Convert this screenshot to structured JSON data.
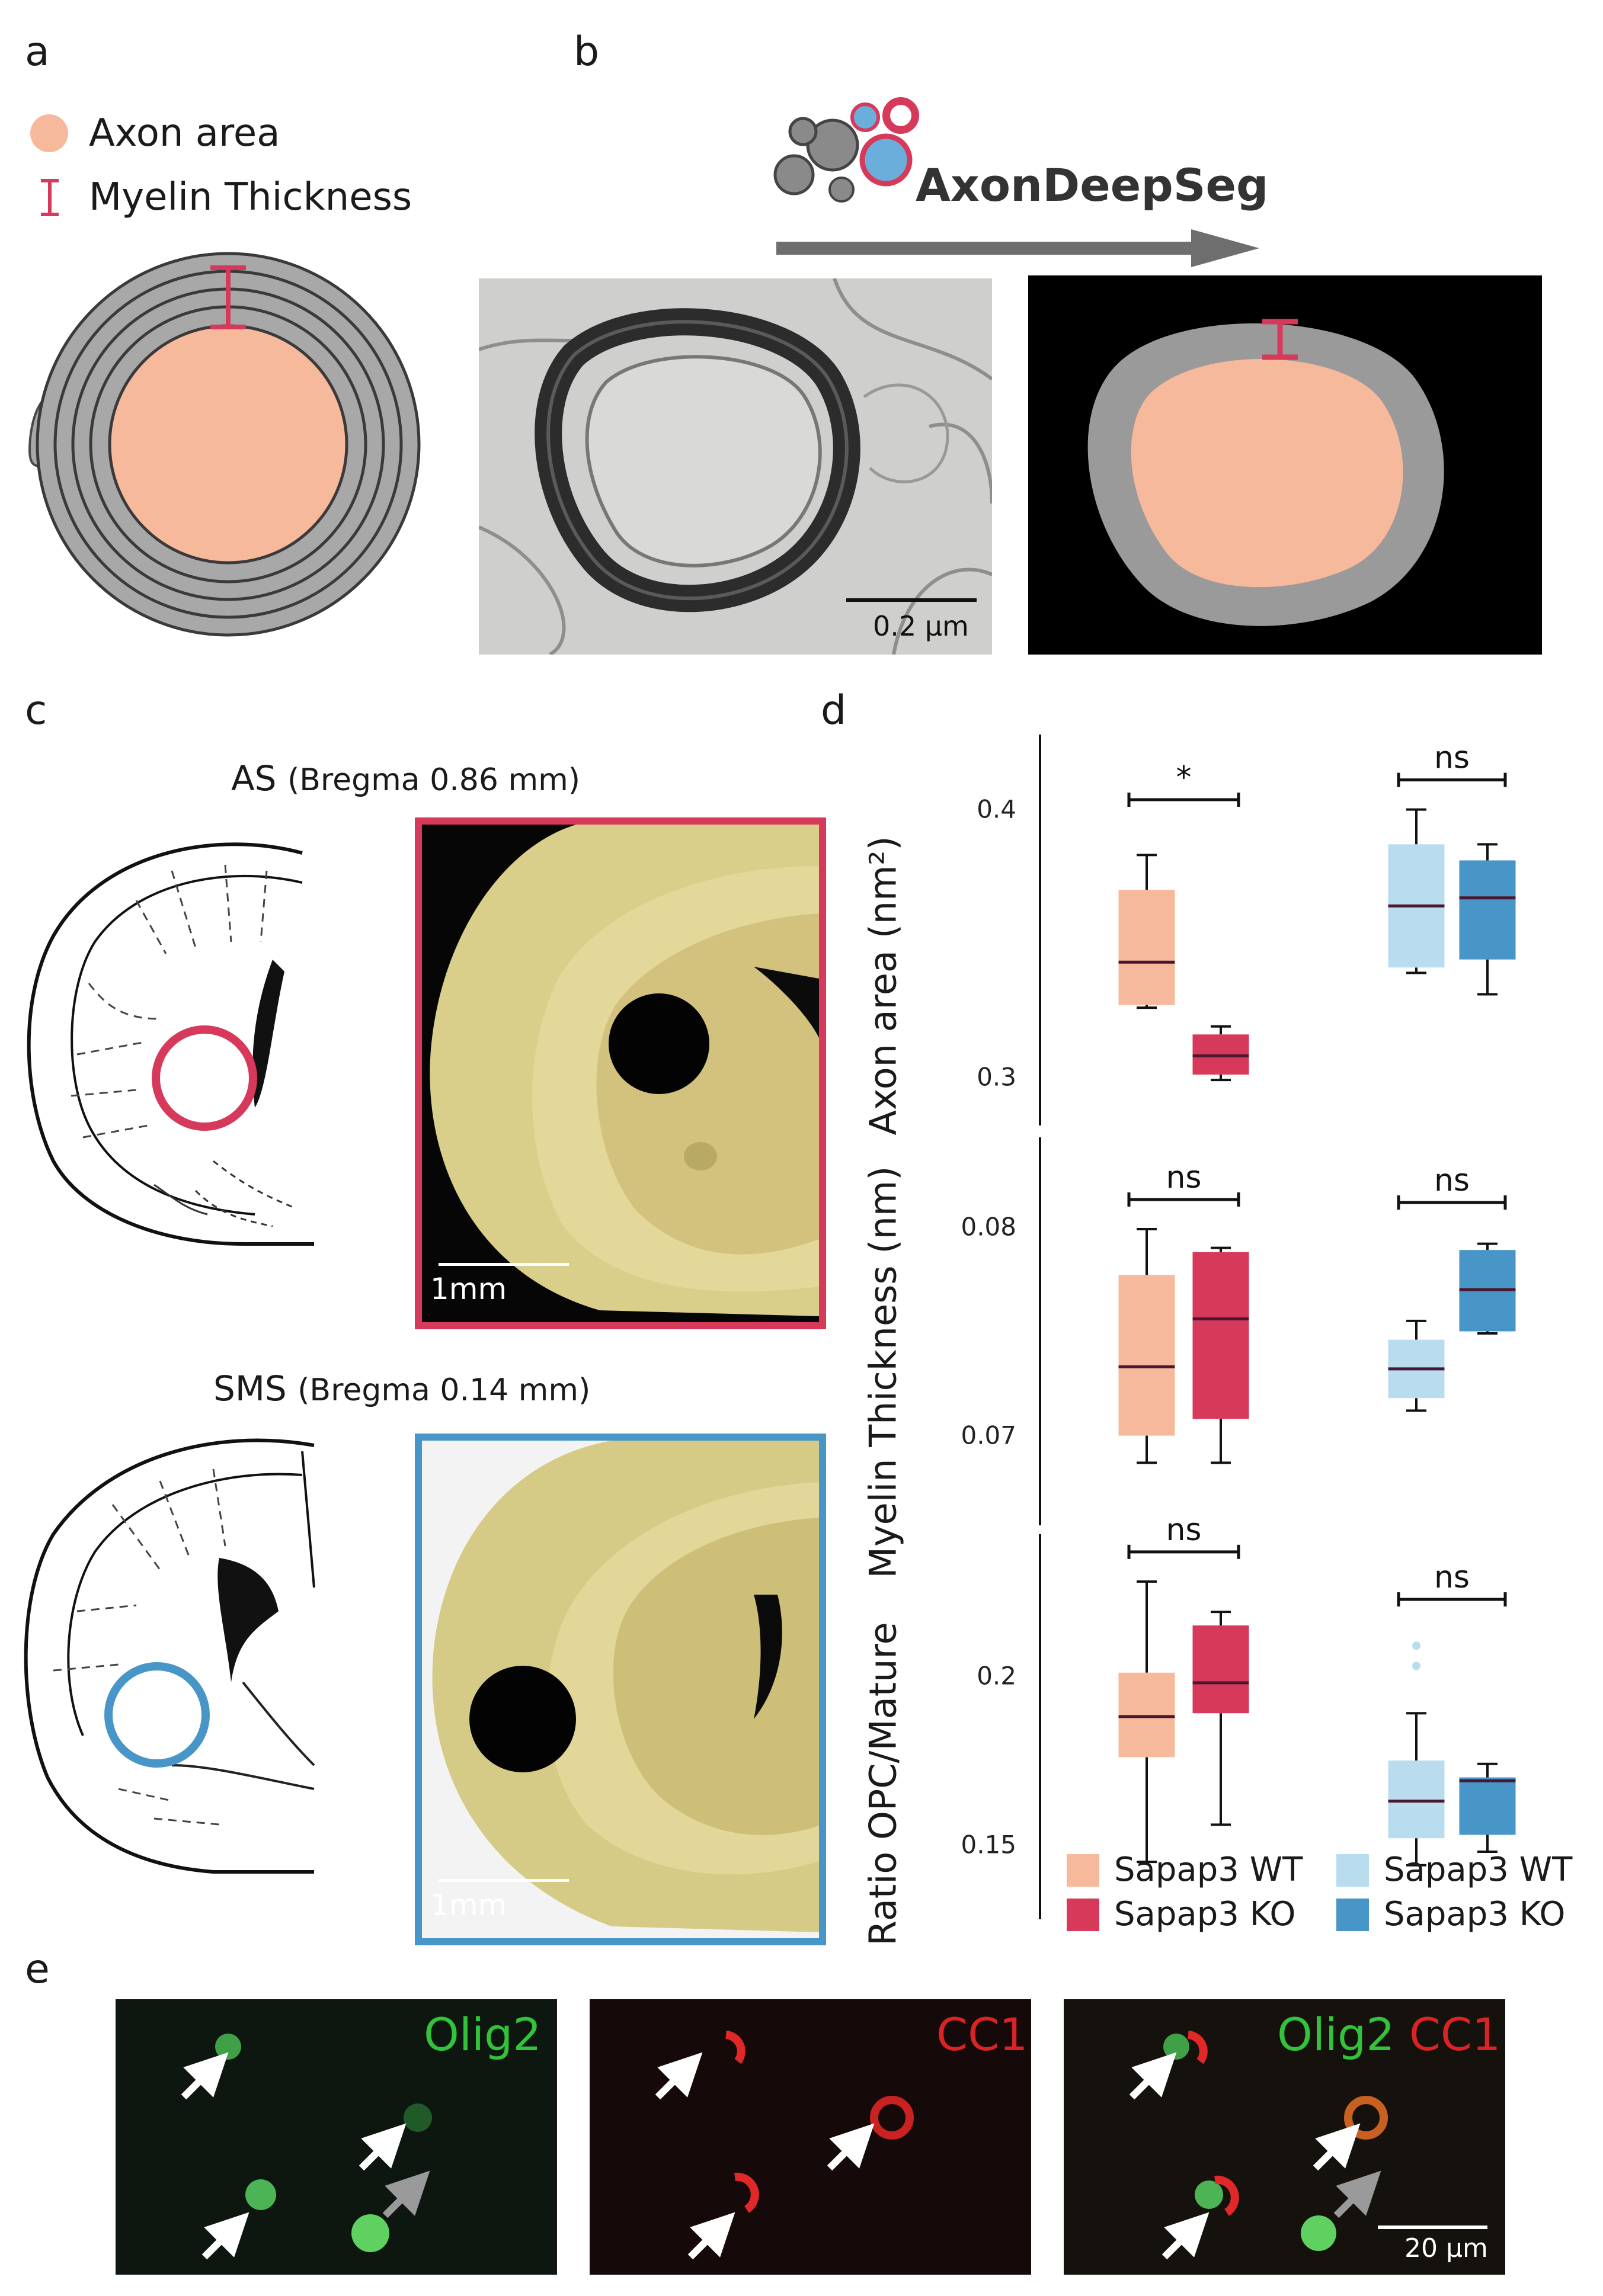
{
  "panel_labels": {
    "a": "a",
    "b": "b",
    "c": "c",
    "d": "d",
    "e": "e"
  },
  "panel_a": {
    "legend": [
      {
        "label": "Axon area",
        "icon": "axon-area-swatch-icon",
        "color": "#f7b99b"
      },
      {
        "label": "Myelin Thickness",
        "icon": "myelin-thickness-bar-icon",
        "color": "#d6395a"
      }
    ]
  },
  "panel_b": {
    "logo_text": "AxonDeepSeg",
    "scale_bar": "0.2 µm",
    "colors": {
      "myelin": "#9a9a9a",
      "axon": "#f7b99b",
      "background": "#000000",
      "marker": "#d6395a"
    }
  },
  "panel_c": {
    "sections": [
      {
        "region": "AS",
        "bregma": "(Bregma 0.86 mm)",
        "scale_bar": "1mm",
        "frame_color": "#d6395a"
      },
      {
        "region": "SMS",
        "bregma": "(Bregma 0.14 mm)",
        "scale_bar": "1mm",
        "frame_color": "#4895c8"
      }
    ]
  },
  "panel_e": {
    "images": [
      {
        "label_1": "Olig2",
        "label_2": "",
        "scale_bar": ""
      },
      {
        "label_1": "",
        "label_2": "CC1",
        "scale_bar": ""
      },
      {
        "label_1": "Olig2",
        "label_2": "CC1",
        "scale_bar": "20 µm"
      }
    ]
  },
  "chart_data": {
    "type": "box",
    "groups": [
      "AS",
      "SMS"
    ],
    "series_colors": {
      "AS WT": "#f7b99b",
      "AS KO": "#d6395a",
      "SMS WT": "#b9dcef",
      "SMS KO": "#4895c8"
    },
    "median_color": "#4a1730",
    "legend": [
      {
        "label": "Sapap3 WT",
        "color": "#f7b99b"
      },
      {
        "label": "Sapap3 KO",
        "color": "#d6395a"
      },
      {
        "label": "Sapap3 WT",
        "color": "#b9dcef"
      },
      {
        "label": "Sapap3 KO",
        "color": "#4895c8"
      }
    ],
    "panels": [
      {
        "ylabel": "Axon area (nm²)",
        "ylim": [
          0.282,
          0.428
        ],
        "ticks": [
          {
            "v": 0.4,
            "label": "0.4"
          },
          {
            "v": 0.3,
            "label": "0.3"
          }
        ],
        "significance": [
          "*",
          "ns"
        ],
        "boxes": [
          {
            "series": "AS WT",
            "whisker_low": 0.326,
            "q1": 0.327,
            "median": 0.343,
            "q3": 0.37,
            "whisker_high": 0.383,
            "outliers": []
          },
          {
            "series": "AS KO",
            "whisker_low": 0.299,
            "q1": 0.301,
            "median": 0.308,
            "q3": 0.316,
            "whisker_high": 0.319,
            "outliers": []
          },
          {
            "series": "SMS WT",
            "whisker_low": 0.339,
            "q1": 0.341,
            "median": 0.364,
            "q3": 0.387,
            "whisker_high": 0.4,
            "outliers": []
          },
          {
            "series": "SMS KO",
            "whisker_low": 0.331,
            "q1": 0.344,
            "median": 0.367,
            "q3": 0.381,
            "whisker_high": 0.387,
            "outliers": []
          }
        ]
      },
      {
        "ylabel": "Myelin Thickness (nm)",
        "ylim": [
          0.0657,
          0.0843
        ],
        "ticks": [
          {
            "v": 0.08,
            "label": "0.08"
          },
          {
            "v": 0.07,
            "label": "0.07"
          }
        ],
        "significance": [
          "ns",
          "ns"
        ],
        "boxes": [
          {
            "series": "AS WT",
            "whisker_low": 0.0687,
            "q1": 0.07,
            "median": 0.0733,
            "q3": 0.0777,
            "whisker_high": 0.0799,
            "outliers": []
          },
          {
            "series": "AS KO",
            "whisker_low": 0.0687,
            "q1": 0.0708,
            "median": 0.0756,
            "q3": 0.0788,
            "whisker_high": 0.079,
            "outliers": []
          },
          {
            "series": "SMS WT",
            "whisker_low": 0.0712,
            "q1": 0.0718,
            "median": 0.0732,
            "q3": 0.0746,
            "whisker_high": 0.0755,
            "outliers": []
          },
          {
            "series": "SMS KO",
            "whisker_low": 0.0749,
            "q1": 0.075,
            "median": 0.077,
            "q3": 0.0789,
            "whisker_high": 0.0792,
            "outliers": []
          }
        ]
      },
      {
        "ylabel": "Ratio OPC/Mature",
        "ylim": [
          0.128,
          0.242
        ],
        "ticks": [
          {
            "v": 0.2,
            "label": "0.2"
          },
          {
            "v": 0.15,
            "label": "0.15"
          }
        ],
        "significance": [
          "ns",
          "ns"
        ],
        "boxes": [
          {
            "series": "AS WT",
            "whisker_low": 0.145,
            "q1": 0.176,
            "median": 0.188,
            "q3": 0.201,
            "whisker_high": 0.228,
            "outliers": []
          },
          {
            "series": "AS KO",
            "whisker_low": 0.156,
            "q1": 0.189,
            "median": 0.198,
            "q3": 0.215,
            "whisker_high": 0.219,
            "outliers": []
          },
          {
            "series": "SMS WT",
            "whisker_low": 0.144,
            "q1": 0.152,
            "median": 0.163,
            "q3": 0.175,
            "whisker_high": 0.189,
            "outliers": [
              0.203,
              0.209
            ]
          },
          {
            "series": "SMS KO",
            "whisker_low": 0.148,
            "q1": 0.153,
            "median": 0.169,
            "q3": 0.17,
            "whisker_high": 0.174,
            "outliers": []
          }
        ]
      }
    ]
  }
}
